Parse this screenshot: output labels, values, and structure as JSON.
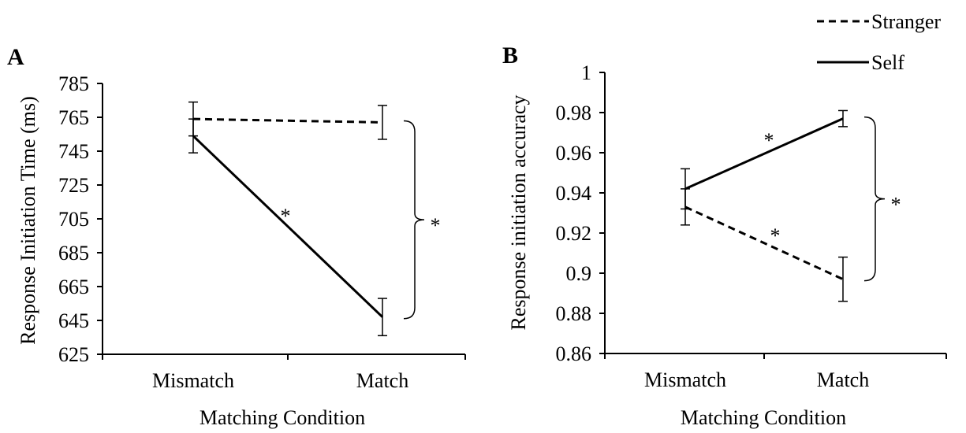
{
  "legend": {
    "placement": "top-right",
    "items": [
      {
        "label": "Stranger",
        "style": "dashed"
      },
      {
        "label": "Self",
        "style": "solid"
      }
    ]
  },
  "chart_data": [
    {
      "type": "line",
      "panel_label": "A",
      "categories": [
        "Mismatch",
        "Match"
      ],
      "xlabel": "Matching Condition",
      "ylabel": "Response Initiation Time (ms)",
      "ylim": [
        625,
        785
      ],
      "yticks": [
        625,
        645,
        665,
        685,
        705,
        725,
        745,
        765,
        785
      ],
      "ytick_labels": [
        "625",
        "645",
        "665",
        "685",
        "705",
        "725",
        "745",
        "765",
        "785"
      ],
      "series": [
        {
          "name": "Stranger",
          "style": "dashed",
          "values": [
            764,
            762
          ],
          "errors": [
            10,
            10
          ]
        },
        {
          "name": "Self",
          "style": "solid",
          "values": [
            754,
            647
          ],
          "errors": [
            10,
            11
          ]
        }
      ],
      "annotations": [
        {
          "text": "*",
          "note": "Self Mismatch vs Match"
        },
        {
          "text": "*",
          "note": "bracket Stranger vs Self at Match"
        }
      ]
    },
    {
      "type": "line",
      "panel_label": "B",
      "categories": [
        "Mismatch",
        "Match"
      ],
      "xlabel": "Matching Condition",
      "ylabel": "Response initiation accuracy",
      "ylim": [
        0.86,
        1.0
      ],
      "yticks": [
        0.86,
        0.88,
        0.9,
        0.92,
        0.94,
        0.96,
        0.98,
        1.0
      ],
      "ytick_labels": [
        "0.86",
        "0.88",
        "0.9",
        "0.92",
        "0.94",
        "0.96",
        "0.98",
        "1"
      ],
      "series": [
        {
          "name": "Stranger",
          "style": "dashed",
          "values": [
            0.933,
            0.897
          ],
          "errors": [
            0.009,
            0.011
          ]
        },
        {
          "name": "Self",
          "style": "solid",
          "values": [
            0.942,
            0.977
          ],
          "errors": [
            0.01,
            0.004
          ]
        }
      ],
      "annotations": [
        {
          "text": "*",
          "note": "Self Mismatch vs Match"
        },
        {
          "text": "*",
          "note": "Stranger Mismatch vs Match"
        },
        {
          "text": "*",
          "note": "bracket Stranger vs Self at Match"
        }
      ]
    }
  ]
}
